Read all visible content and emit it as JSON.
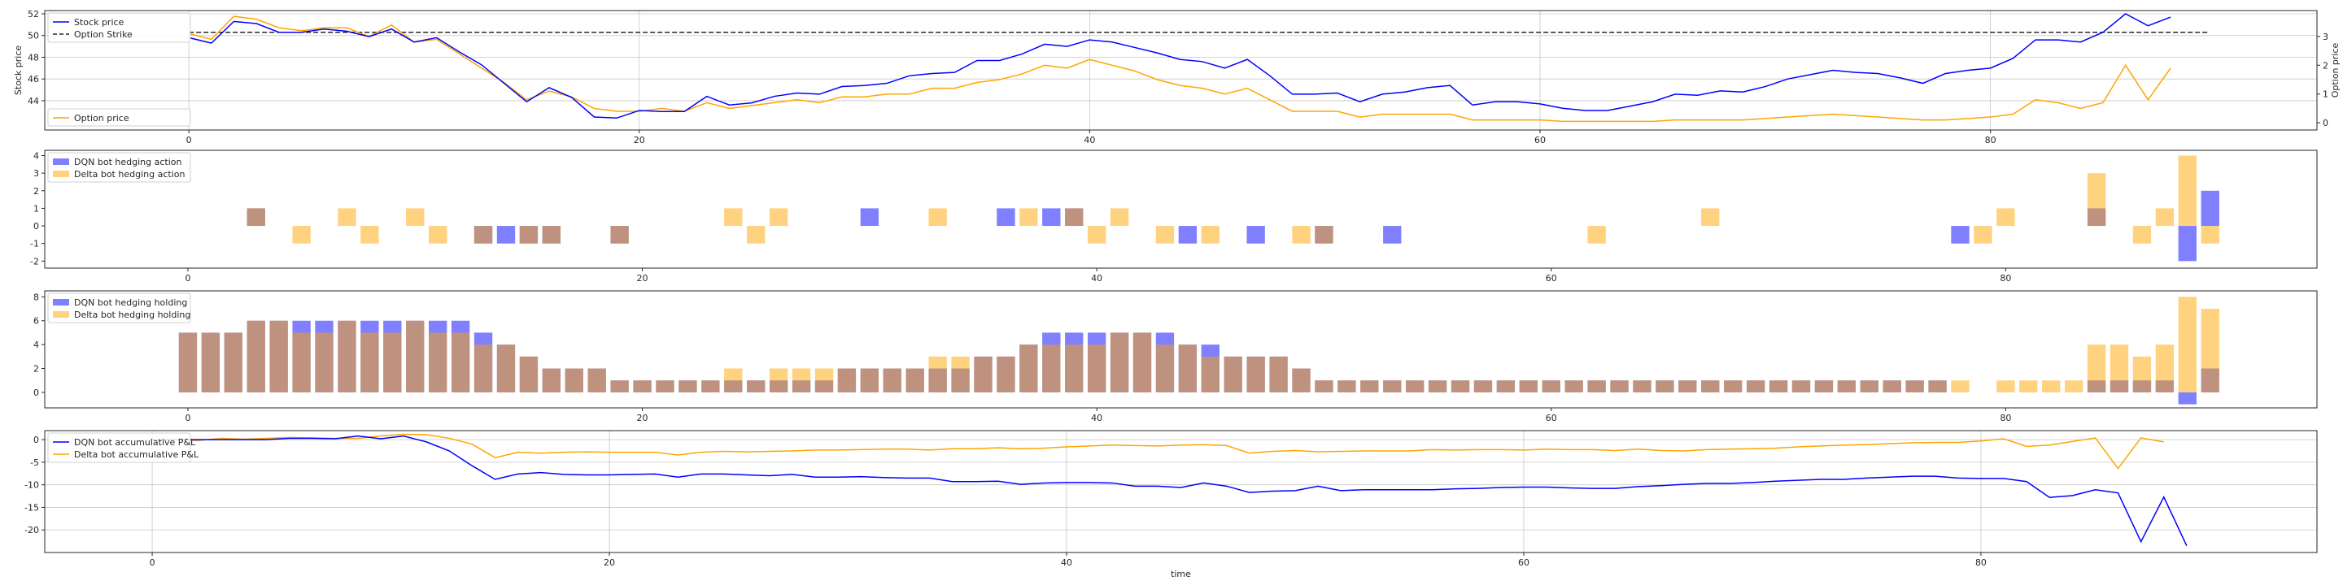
{
  "chart_data": [
    {
      "id": "price",
      "type": "line",
      "xlabel": "",
      "ylabel": "Stock price",
      "ylabel_right": "Option price",
      "xlim": [
        -6.4,
        94.5
      ],
      "ylim": [
        41.3,
        52.3
      ],
      "ylim_right": [
        -0.25,
        3.9
      ],
      "yticks": [
        44,
        46,
        48,
        50,
        52
      ],
      "yticks_right": [
        0,
        1,
        2,
        3
      ],
      "xticks": [
        0,
        20,
        40,
        60,
        80
      ],
      "grid": true,
      "series": [
        {
          "name": "Stock price",
          "axis": "left",
          "color": "#0000ff",
          "style": "solid",
          "x_start": 0,
          "values": [
            49.8,
            49.3,
            51.3,
            51.1,
            50.3,
            50.3,
            50.6,
            50.4,
            49.9,
            50.6,
            49.4,
            49.8,
            48.5,
            47.3,
            45.6,
            43.9,
            45.2,
            44.3,
            42.5,
            42.4,
            43.1,
            43.0,
            43.0,
            44.4,
            43.6,
            43.8,
            44.4,
            44.7,
            44.6,
            45.3,
            45.4,
            45.6,
            46.3,
            46.5,
            46.6,
            47.7,
            47.7,
            48.3,
            49.2,
            49.0,
            49.6,
            49.4,
            48.9,
            48.4,
            47.8,
            47.6,
            47.0,
            47.8,
            46.3,
            44.6,
            44.6,
            44.7,
            43.9,
            44.6,
            44.8,
            45.2,
            45.4,
            43.6,
            43.9,
            43.9,
            43.7,
            43.3,
            43.1,
            43.1,
            43.5,
            43.9,
            44.6,
            44.5,
            44.9,
            44.8,
            45.3,
            46.0,
            46.4,
            46.8,
            46.6,
            46.5,
            46.1,
            45.6,
            46.5,
            46.8,
            47.0,
            47.9,
            49.6,
            49.6,
            49.4,
            50.3,
            52.0,
            50.9,
            51.7
          ]
        },
        {
          "name": "Option Strike",
          "axis": "left",
          "color": "#262626",
          "style": "dashed",
          "x_range": [
            0,
            89.7
          ],
          "value": 50.3
        },
        {
          "name": "Option price",
          "axis": "right",
          "color": "#ffa500",
          "style": "solid",
          "x_start": 0,
          "values": [
            3.1,
            2.9,
            3.7,
            3.6,
            3.3,
            3.2,
            3.3,
            3.3,
            3.0,
            3.4,
            2.8,
            2.9,
            2.4,
            1.9,
            1.4,
            0.8,
            1.1,
            0.9,
            0.5,
            0.4,
            0.4,
            0.5,
            0.4,
            0.7,
            0.5,
            0.6,
            0.7,
            0.8,
            0.7,
            0.9,
            0.9,
            1.0,
            1.0,
            1.2,
            1.2,
            1.4,
            1.5,
            1.7,
            2.0,
            1.9,
            2.2,
            2.0,
            1.8,
            1.5,
            1.3,
            1.2,
            1.0,
            1.2,
            0.8,
            0.4,
            0.4,
            0.4,
            0.2,
            0.3,
            0.3,
            0.3,
            0.3,
            0.1,
            0.1,
            0.1,
            0.1,
            0.05,
            0.05,
            0.05,
            0.05,
            0.05,
            0.1,
            0.1,
            0.1,
            0.1,
            0.15,
            0.2,
            0.25,
            0.3,
            0.25,
            0.2,
            0.15,
            0.1,
            0.1,
            0.15,
            0.2,
            0.3,
            0.8,
            0.7,
            0.5,
            0.7,
            2.0,
            0.8,
            1.9
          ]
        }
      ],
      "legend": [
        {
          "label": "Stock price",
          "placement": "upper-left"
        },
        {
          "label": "Option Strike",
          "placement": "upper-left"
        },
        {
          "label": "Option price",
          "placement": "lower-left"
        }
      ]
    },
    {
      "id": "actions",
      "type": "bar",
      "xlabel": "",
      "ylabel": "",
      "xlim": [
        -6.3,
        93.7
      ],
      "ylim": [
        -2.4,
        4.3
      ],
      "yticks": [
        -2,
        -1,
        0,
        1,
        2,
        3,
        4
      ],
      "xticks": [
        0,
        20,
        40,
        60,
        80
      ],
      "grid": false,
      "legend_placement": "upper-left",
      "series": [
        {
          "name": "DQN bot hedging action",
          "color": "#0000ff",
          "alpha": 0.5,
          "points": [
            [
              3,
              1
            ],
            [
              13,
              -1
            ],
            [
              14,
              -1
            ],
            [
              15,
              -1
            ],
            [
              16,
              -1
            ],
            [
              19,
              -1
            ],
            [
              30,
              1
            ],
            [
              36,
              1
            ],
            [
              38,
              1
            ],
            [
              39,
              1
            ],
            [
              44,
              -1
            ],
            [
              47,
              -1
            ],
            [
              50,
              -1
            ],
            [
              53,
              -1
            ],
            [
              78,
              -1
            ],
            [
              84,
              1
            ],
            [
              88,
              -2
            ],
            [
              89,
              2
            ]
          ]
        },
        {
          "name": "Delta bot hedging action",
          "color": "#ffa500",
          "alpha": 0.5,
          "points": [
            [
              3,
              1
            ],
            [
              5,
              -1
            ],
            [
              7,
              1
            ],
            [
              8,
              -1
            ],
            [
              10,
              1
            ],
            [
              11,
              -1
            ],
            [
              13,
              -1
            ],
            [
              15,
              -1
            ],
            [
              16,
              -1
            ],
            [
              19,
              -1
            ],
            [
              24,
              1
            ],
            [
              25,
              -1
            ],
            [
              26,
              1
            ],
            [
              33,
              1
            ],
            [
              37,
              1
            ],
            [
              39,
              1
            ],
            [
              40,
              -1
            ],
            [
              41,
              1
            ],
            [
              43,
              -1
            ],
            [
              45,
              -1
            ],
            [
              49,
              -1
            ],
            [
              50,
              -1
            ],
            [
              62,
              -1
            ],
            [
              67,
              1
            ],
            [
              79,
              -1
            ],
            [
              80,
              1
            ],
            [
              84,
              3
            ],
            [
              86,
              -1
            ],
            [
              87,
              1
            ],
            [
              88,
              4
            ],
            [
              89,
              -1
            ]
          ]
        }
      ]
    },
    {
      "id": "holdings",
      "type": "bar",
      "xlabel": "",
      "ylabel": "",
      "xlim": [
        -6.3,
        93.7
      ],
      "ylim": [
        -1.3,
        8.5
      ],
      "yticks": [
        0,
        2,
        4,
        6,
        8
      ],
      "xticks": [
        0,
        20,
        40,
        60,
        80
      ],
      "grid": false,
      "legend_placement": "upper-left",
      "series": [
        {
          "name": "DQN bot hedging holding",
          "color": "#0000ff",
          "alpha": 0.5,
          "values": [
            5,
            5,
            5,
            6,
            6,
            6,
            6,
            6,
            6,
            6,
            6,
            6,
            6,
            5,
            4,
            3,
            2,
            2,
            2,
            1,
            1,
            1,
            1,
            1,
            1,
            1,
            1,
            1,
            1,
            2,
            2,
            2,
            2,
            2,
            2,
            3,
            3,
            4,
            5,
            5,
            5,
            5,
            5,
            5,
            4,
            4,
            3,
            3,
            3,
            2,
            1,
            1,
            1,
            1,
            1,
            1,
            1,
            1,
            1,
            1,
            1,
            1,
            1,
            1,
            1,
            1,
            1,
            1,
            1,
            1,
            1,
            1,
            1,
            1,
            1,
            1,
            1,
            1,
            0,
            0,
            0,
            0,
            0,
            0,
            1,
            1,
            1,
            1,
            -1,
            2
          ]
        },
        {
          "name": "Delta bot hedging holding",
          "color": "#ffa500",
          "alpha": 0.5,
          "values": [
            5,
            5,
            5,
            6,
            6,
            5,
            5,
            6,
            5,
            5,
            6,
            5,
            5,
            4,
            4,
            3,
            2,
            2,
            2,
            1,
            1,
            1,
            1,
            1,
            2,
            1,
            2,
            2,
            2,
            2,
            2,
            2,
            2,
            3,
            3,
            3,
            3,
            4,
            4,
            4,
            4,
            5,
            5,
            4,
            4,
            3,
            3,
            3,
            3,
            2,
            1,
            1,
            1,
            1,
            1,
            1,
            1,
            1,
            1,
            1,
            1,
            1,
            1,
            1,
            1,
            1,
            1,
            1,
            1,
            1,
            1,
            1,
            1,
            1,
            1,
            1,
            1,
            1,
            1,
            0,
            1,
            1,
            1,
            1,
            4,
            4,
            3,
            4,
            8,
            7
          ]
        }
      ]
    },
    {
      "id": "pnl",
      "type": "line",
      "xlabel": "time",
      "ylabel": "",
      "xlim": [
        -4.7,
        94.7
      ],
      "ylim": [
        -25.0,
        2.0
      ],
      "yticks": [
        -20,
        -15,
        -10,
        -5,
        0
      ],
      "xticks": [
        0,
        20,
        40,
        60,
        80
      ],
      "grid": true,
      "legend_placement": "upper-left",
      "series": [
        {
          "name": "DQN bot accumulative P&L",
          "color": "#0000ff",
          "values": [
            0,
            0,
            0,
            0,
            0,
            0,
            0.3,
            0.3,
            0.2,
            0.8,
            0.2,
            0.8,
            -0.5,
            -2.5,
            -5.8,
            -8.8,
            -7.6,
            -7.3,
            -7.7,
            -7.8,
            -7.8,
            -7.7,
            -7.6,
            -8.3,
            -7.6,
            -7.6,
            -7.8,
            -8.0,
            -7.7,
            -8.3,
            -8.3,
            -8.2,
            -8.4,
            -8.5,
            -8.5,
            -9.3,
            -9.3,
            -9.2,
            -9.9,
            -9.6,
            -9.5,
            -9.5,
            -9.6,
            -10.3,
            -10.3,
            -10.6,
            -9.6,
            -10.3,
            -11.7,
            -11.4,
            -11.3,
            -10.3,
            -11.3,
            -11.1,
            -11.1,
            -11.1,
            -11.1,
            -10.9,
            -10.8,
            -10.6,
            -10.5,
            -10.5,
            -10.7,
            -10.8,
            -10.8,
            -10.4,
            -10.2,
            -9.9,
            -9.7,
            -9.7,
            -9.5,
            -9.2,
            -9.0,
            -8.8,
            -8.8,
            -8.5,
            -8.3,
            -8.1,
            -8.1,
            -8.5,
            -8.6,
            -8.6,
            -9.3,
            -12.8,
            -12.4,
            -11.1,
            -11.8,
            -22.6,
            -12.7,
            -23.5
          ]
        },
        {
          "name": "Delta bot accumulative P&L",
          "color": "#ffa500",
          "values": [
            0,
            0,
            -0.2,
            0.3,
            0.1,
            0.3,
            0.5,
            0.4,
            0.3,
            0.3,
            0.8,
            1.2,
            1.1,
            0.3,
            -1.0,
            -4.0,
            -2.8,
            -3.0,
            -2.8,
            -2.7,
            -2.8,
            -2.8,
            -2.8,
            -3.4,
            -2.8,
            -2.6,
            -2.7,
            -2.6,
            -2.5,
            -2.3,
            -2.3,
            -2.2,
            -2.1,
            -2.1,
            -2.3,
            -2.0,
            -2.0,
            -1.8,
            -2.0,
            -1.9,
            -1.6,
            -1.4,
            -1.2,
            -1.3,
            -1.4,
            -1.2,
            -1.1,
            -1.3,
            -3.0,
            -2.6,
            -2.4,
            -2.7,
            -2.6,
            -2.5,
            -2.5,
            -2.5,
            -2.2,
            -2.3,
            -2.2,
            -2.2,
            -2.3,
            -2.1,
            -2.2,
            -2.2,
            -2.4,
            -2.1,
            -2.4,
            -2.5,
            -2.2,
            -2.1,
            -2.0,
            -1.9,
            -1.6,
            -1.4,
            -1.2,
            -1.1,
            -0.9,
            -0.7,
            -0.6,
            -0.6,
            -0.3,
            0.2,
            -1.5,
            -1.2,
            -0.4,
            0.4,
            -6.4,
            0.4,
            -0.5
          ]
        }
      ]
    }
  ]
}
